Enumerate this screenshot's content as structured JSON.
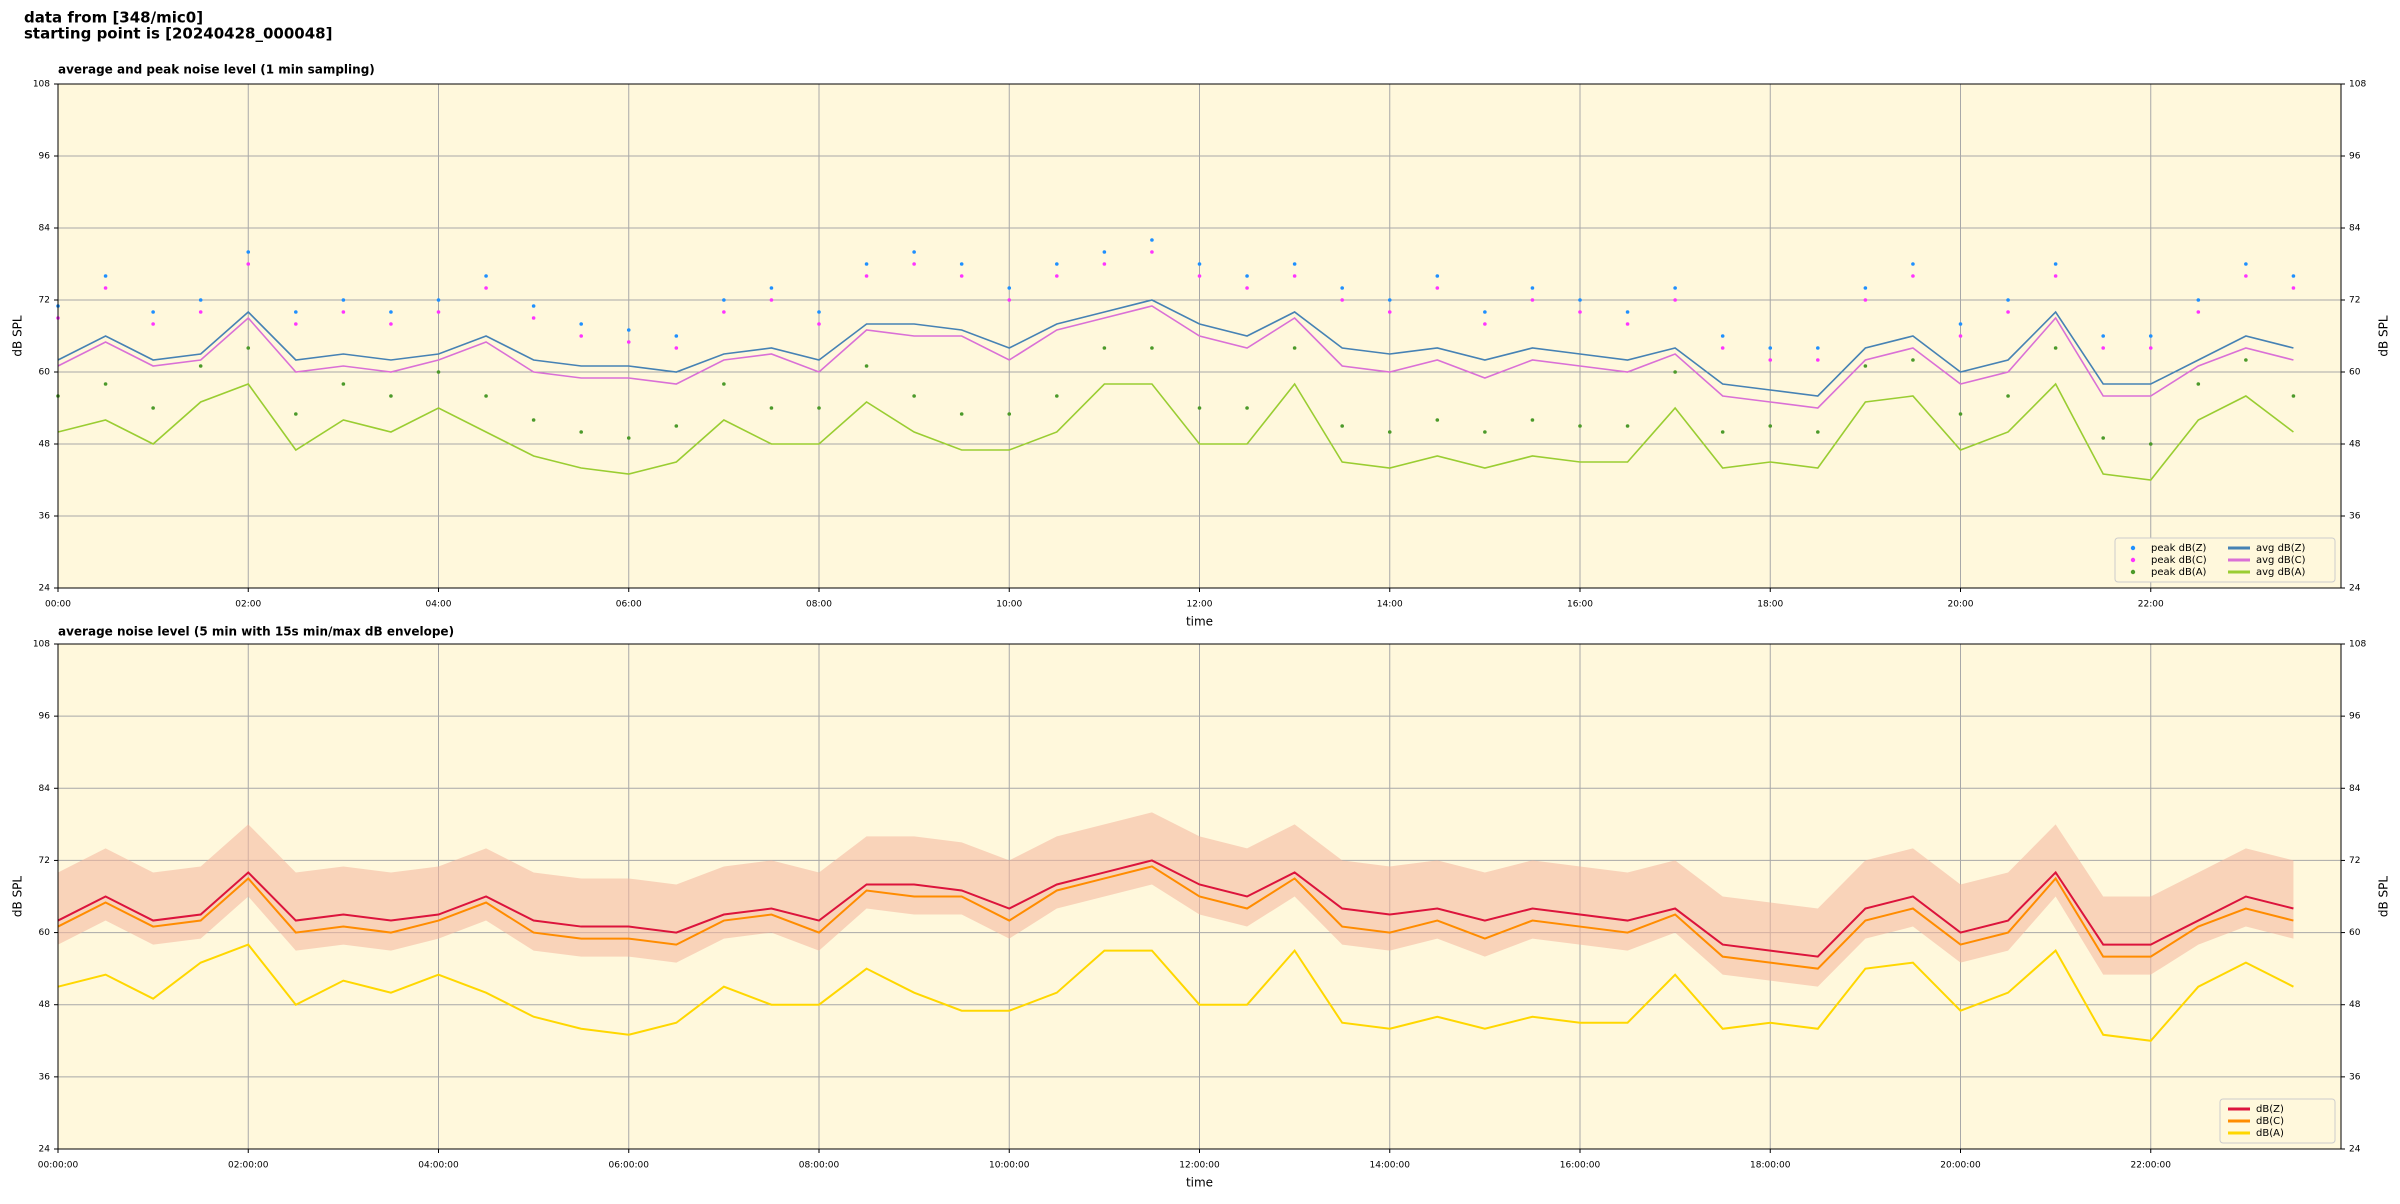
{
  "header": {
    "line1": "data from [348/mic0]",
    "line2": "starting point is [20240428_000048]"
  },
  "chart_data": [
    {
      "type": "line",
      "title": "average and peak noise level (1 min sampling)",
      "x_label": "time",
      "y_label": "dB SPL",
      "xlim": [
        0,
        24
      ],
      "ylim": [
        24,
        108
      ],
      "yticks": [
        24,
        36,
        48,
        60,
        72,
        84,
        96,
        108
      ],
      "xticks": [
        {
          "value": 0,
          "label": "00:00"
        },
        {
          "value": 2,
          "label": "02:00"
        },
        {
          "value": 4,
          "label": "04:00"
        },
        {
          "value": 6,
          "label": "06:00"
        },
        {
          "value": 8,
          "label": "08:00"
        },
        {
          "value": 10,
          "label": "10:00"
        },
        {
          "value": 12,
          "label": "12:00"
        },
        {
          "value": 14,
          "label": "14:00"
        },
        {
          "value": 16,
          "label": "16:00"
        },
        {
          "value": 18,
          "label": "18:00"
        },
        {
          "value": 20,
          "label": "20:00"
        },
        {
          "value": 22,
          "label": "22:00"
        }
      ],
      "grid": true,
      "legend": "lower right",
      "legend_columns": 2,
      "background": "#fff8dc",
      "x": [
        0,
        0.5,
        1,
        1.5,
        2,
        2.5,
        3,
        3.5,
        4,
        4.5,
        5,
        5.5,
        6,
        6.5,
        7,
        7.5,
        8,
        8.5,
        9,
        9.5,
        10,
        10.5,
        11,
        11.5,
        12,
        12.5,
        13,
        13.5,
        14,
        14.5,
        15,
        15.5,
        16,
        16.5,
        17,
        17.5,
        18,
        18.5,
        19,
        19.5,
        20,
        20.5,
        21,
        21.5,
        22,
        22.5,
        23,
        23.5
      ],
      "series": [
        {
          "name": "peak dB(Z)",
          "type": "scatter",
          "color": "#1e90ff",
          "values": [
            71,
            76,
            70,
            72,
            80,
            70,
            72,
            70,
            72,
            76,
            71,
            68,
            67,
            66,
            72,
            74,
            70,
            78,
            80,
            78,
            74,
            78,
            80,
            82,
            78,
            76,
            78,
            74,
            72,
            76,
            70,
            74,
            72,
            70,
            74,
            66,
            64,
            64,
            74,
            78,
            68,
            72,
            78,
            66,
            66,
            72,
            78,
            76
          ]
        },
        {
          "name": "peak dB(C)",
          "type": "scatter",
          "color": "#ff33ff",
          "values": [
            69,
            74,
            68,
            70,
            78,
            68,
            70,
            68,
            70,
            74,
            69,
            66,
            65,
            64,
            70,
            72,
            68,
            76,
            78,
            76,
            72,
            76,
            78,
            80,
            76,
            74,
            76,
            72,
            70,
            74,
            68,
            72,
            70,
            68,
            72,
            64,
            62,
            62,
            72,
            76,
            66,
            70,
            76,
            64,
            64,
            70,
            76,
            74
          ]
        },
        {
          "name": "peak dB(A)",
          "type": "scatter",
          "color": "#4c9a2a",
          "values": [
            56,
            58,
            54,
            61,
            64,
            53,
            58,
            56,
            60,
            56,
            52,
            50,
            49,
            51,
            58,
            54,
            54,
            61,
            56,
            53,
            53,
            56,
            64,
            64,
            54,
            54,
            64,
            51,
            50,
            52,
            50,
            52,
            51,
            51,
            60,
            50,
            51,
            50,
            61,
            62,
            53,
            56,
            64,
            49,
            48,
            58,
            62,
            56
          ]
        },
        {
          "name": "avg dB(Z)",
          "type": "line",
          "color": "#4682b4",
          "values": [
            62,
            66,
            62,
            63,
            70,
            62,
            63,
            62,
            63,
            66,
            62,
            61,
            61,
            60,
            63,
            64,
            62,
            68,
            68,
            67,
            64,
            68,
            70,
            72,
            68,
            66,
            70,
            64,
            63,
            64,
            62,
            64,
            63,
            62,
            64,
            58,
            57,
            56,
            64,
            66,
            60,
            62,
            70,
            58,
            58,
            62,
            66,
            64
          ]
        },
        {
          "name": "avg dB(C)",
          "type": "line",
          "color": "#da70d6",
          "values": [
            61,
            65,
            61,
            62,
            69,
            60,
            61,
            60,
            62,
            65,
            60,
            59,
            59,
            58,
            62,
            63,
            60,
            67,
            66,
            66,
            62,
            67,
            69,
            71,
            66,
            64,
            69,
            61,
            60,
            62,
            59,
            62,
            61,
            60,
            63,
            56,
            55,
            54,
            62,
            64,
            58,
            60,
            69,
            56,
            56,
            61,
            64,
            62
          ]
        },
        {
          "name": "avg dB(A)",
          "type": "line",
          "color": "#9acd32",
          "values": [
            50,
            52,
            48,
            55,
            58,
            47,
            52,
            50,
            54,
            50,
            46,
            44,
            43,
            45,
            52,
            48,
            48,
            55,
            50,
            47,
            47,
            50,
            58,
            58,
            48,
            48,
            58,
            45,
            44,
            46,
            44,
            46,
            45,
            45,
            54,
            44,
            45,
            44,
            55,
            56,
            47,
            50,
            58,
            43,
            42,
            52,
            56,
            50
          ]
        }
      ]
    },
    {
      "type": "line",
      "title": "average noise level (5 min with 15s min/max dB envelope)",
      "x_label": "time",
      "y_label": "dB SPL",
      "xlim": [
        0,
        24
      ],
      "ylim": [
        24,
        108
      ],
      "yticks": [
        24,
        36,
        48,
        60,
        72,
        84,
        96,
        108
      ],
      "xticks": [
        {
          "value": 0,
          "label": "00:00:00"
        },
        {
          "value": 2,
          "label": "02:00:00"
        },
        {
          "value": 4,
          "label": "04:00:00"
        },
        {
          "value": 6,
          "label": "06:00:00"
        },
        {
          "value": 8,
          "label": "08:00:00"
        },
        {
          "value": 10,
          "label": "10:00:00"
        },
        {
          "value": 12,
          "label": "12:00:00"
        },
        {
          "value": 14,
          "label": "14:00:00"
        },
        {
          "value": 16,
          "label": "16:00:00"
        },
        {
          "value": 18,
          "label": "18:00:00"
        },
        {
          "value": 20,
          "label": "20:00:00"
        },
        {
          "value": 22,
          "label": "22:00:00"
        }
      ],
      "grid": true,
      "legend": "lower right",
      "legend_columns": 1,
      "background": "#fff8dc",
      "x": [
        0,
        0.5,
        1,
        1.5,
        2,
        2.5,
        3,
        3.5,
        4,
        4.5,
        5,
        5.5,
        6,
        6.5,
        7,
        7.5,
        8,
        8.5,
        9,
        9.5,
        10,
        10.5,
        11,
        11.5,
        12,
        12.5,
        13,
        13.5,
        14,
        14.5,
        15,
        15.5,
        16,
        16.5,
        17,
        17.5,
        18,
        18.5,
        19,
        19.5,
        20,
        20.5,
        21,
        21.5,
        22,
        22.5,
        23,
        23.5
      ],
      "envelope": {
        "color": "#f4b49c",
        "low": [
          58,
          62,
          58,
          59,
          66,
          57,
          58,
          57,
          59,
          62,
          57,
          56,
          56,
          55,
          59,
          60,
          57,
          64,
          63,
          63,
          59,
          64,
          66,
          68,
          63,
          61,
          66,
          58,
          57,
          59,
          56,
          59,
          58,
          57,
          60,
          53,
          52,
          51,
          59,
          61,
          55,
          57,
          66,
          53,
          53,
          58,
          61,
          59
        ],
        "high": [
          70,
          74,
          70,
          71,
          78,
          70,
          71,
          70,
          71,
          74,
          70,
          69,
          69,
          68,
          71,
          72,
          70,
          76,
          76,
          75,
          72,
          76,
          78,
          80,
          76,
          74,
          78,
          72,
          71,
          72,
          70,
          72,
          71,
          70,
          72,
          66,
          65,
          64,
          72,
          74,
          68,
          70,
          78,
          66,
          66,
          70,
          74,
          72
        ]
      },
      "series": [
        {
          "name": "dB(Z)",
          "type": "line",
          "color": "#dc143c",
          "values": [
            62,
            66,
            62,
            63,
            70,
            62,
            63,
            62,
            63,
            66,
            62,
            61,
            61,
            60,
            63,
            64,
            62,
            68,
            68,
            67,
            64,
            68,
            70,
            72,
            68,
            66,
            70,
            64,
            63,
            64,
            62,
            64,
            63,
            62,
            64,
            58,
            57,
            56,
            64,
            66,
            60,
            62,
            70,
            58,
            58,
            62,
            66,
            64
          ]
        },
        {
          "name": "dB(C)",
          "type": "line",
          "color": "#ff8c00",
          "values": [
            61,
            65,
            61,
            62,
            69,
            60,
            61,
            60,
            62,
            65,
            60,
            59,
            59,
            58,
            62,
            63,
            60,
            67,
            66,
            66,
            62,
            67,
            69,
            71,
            66,
            64,
            69,
            61,
            60,
            62,
            59,
            62,
            61,
            60,
            63,
            56,
            55,
            54,
            62,
            64,
            58,
            60,
            69,
            56,
            56,
            61,
            64,
            62
          ]
        },
        {
          "name": "dB(A)",
          "type": "line",
          "color": "#ffd700",
          "values": [
            51,
            53,
            49,
            55,
            58,
            48,
            52,
            50,
            53,
            50,
            46,
            44,
            43,
            45,
            51,
            48,
            48,
            54,
            50,
            47,
            47,
            50,
            57,
            57,
            48,
            48,
            57,
            45,
            44,
            46,
            44,
            46,
            45,
            45,
            53,
            44,
            45,
            44,
            54,
            55,
            47,
            50,
            57,
            43,
            42,
            51,
            55,
            51
          ]
        }
      ]
    }
  ]
}
